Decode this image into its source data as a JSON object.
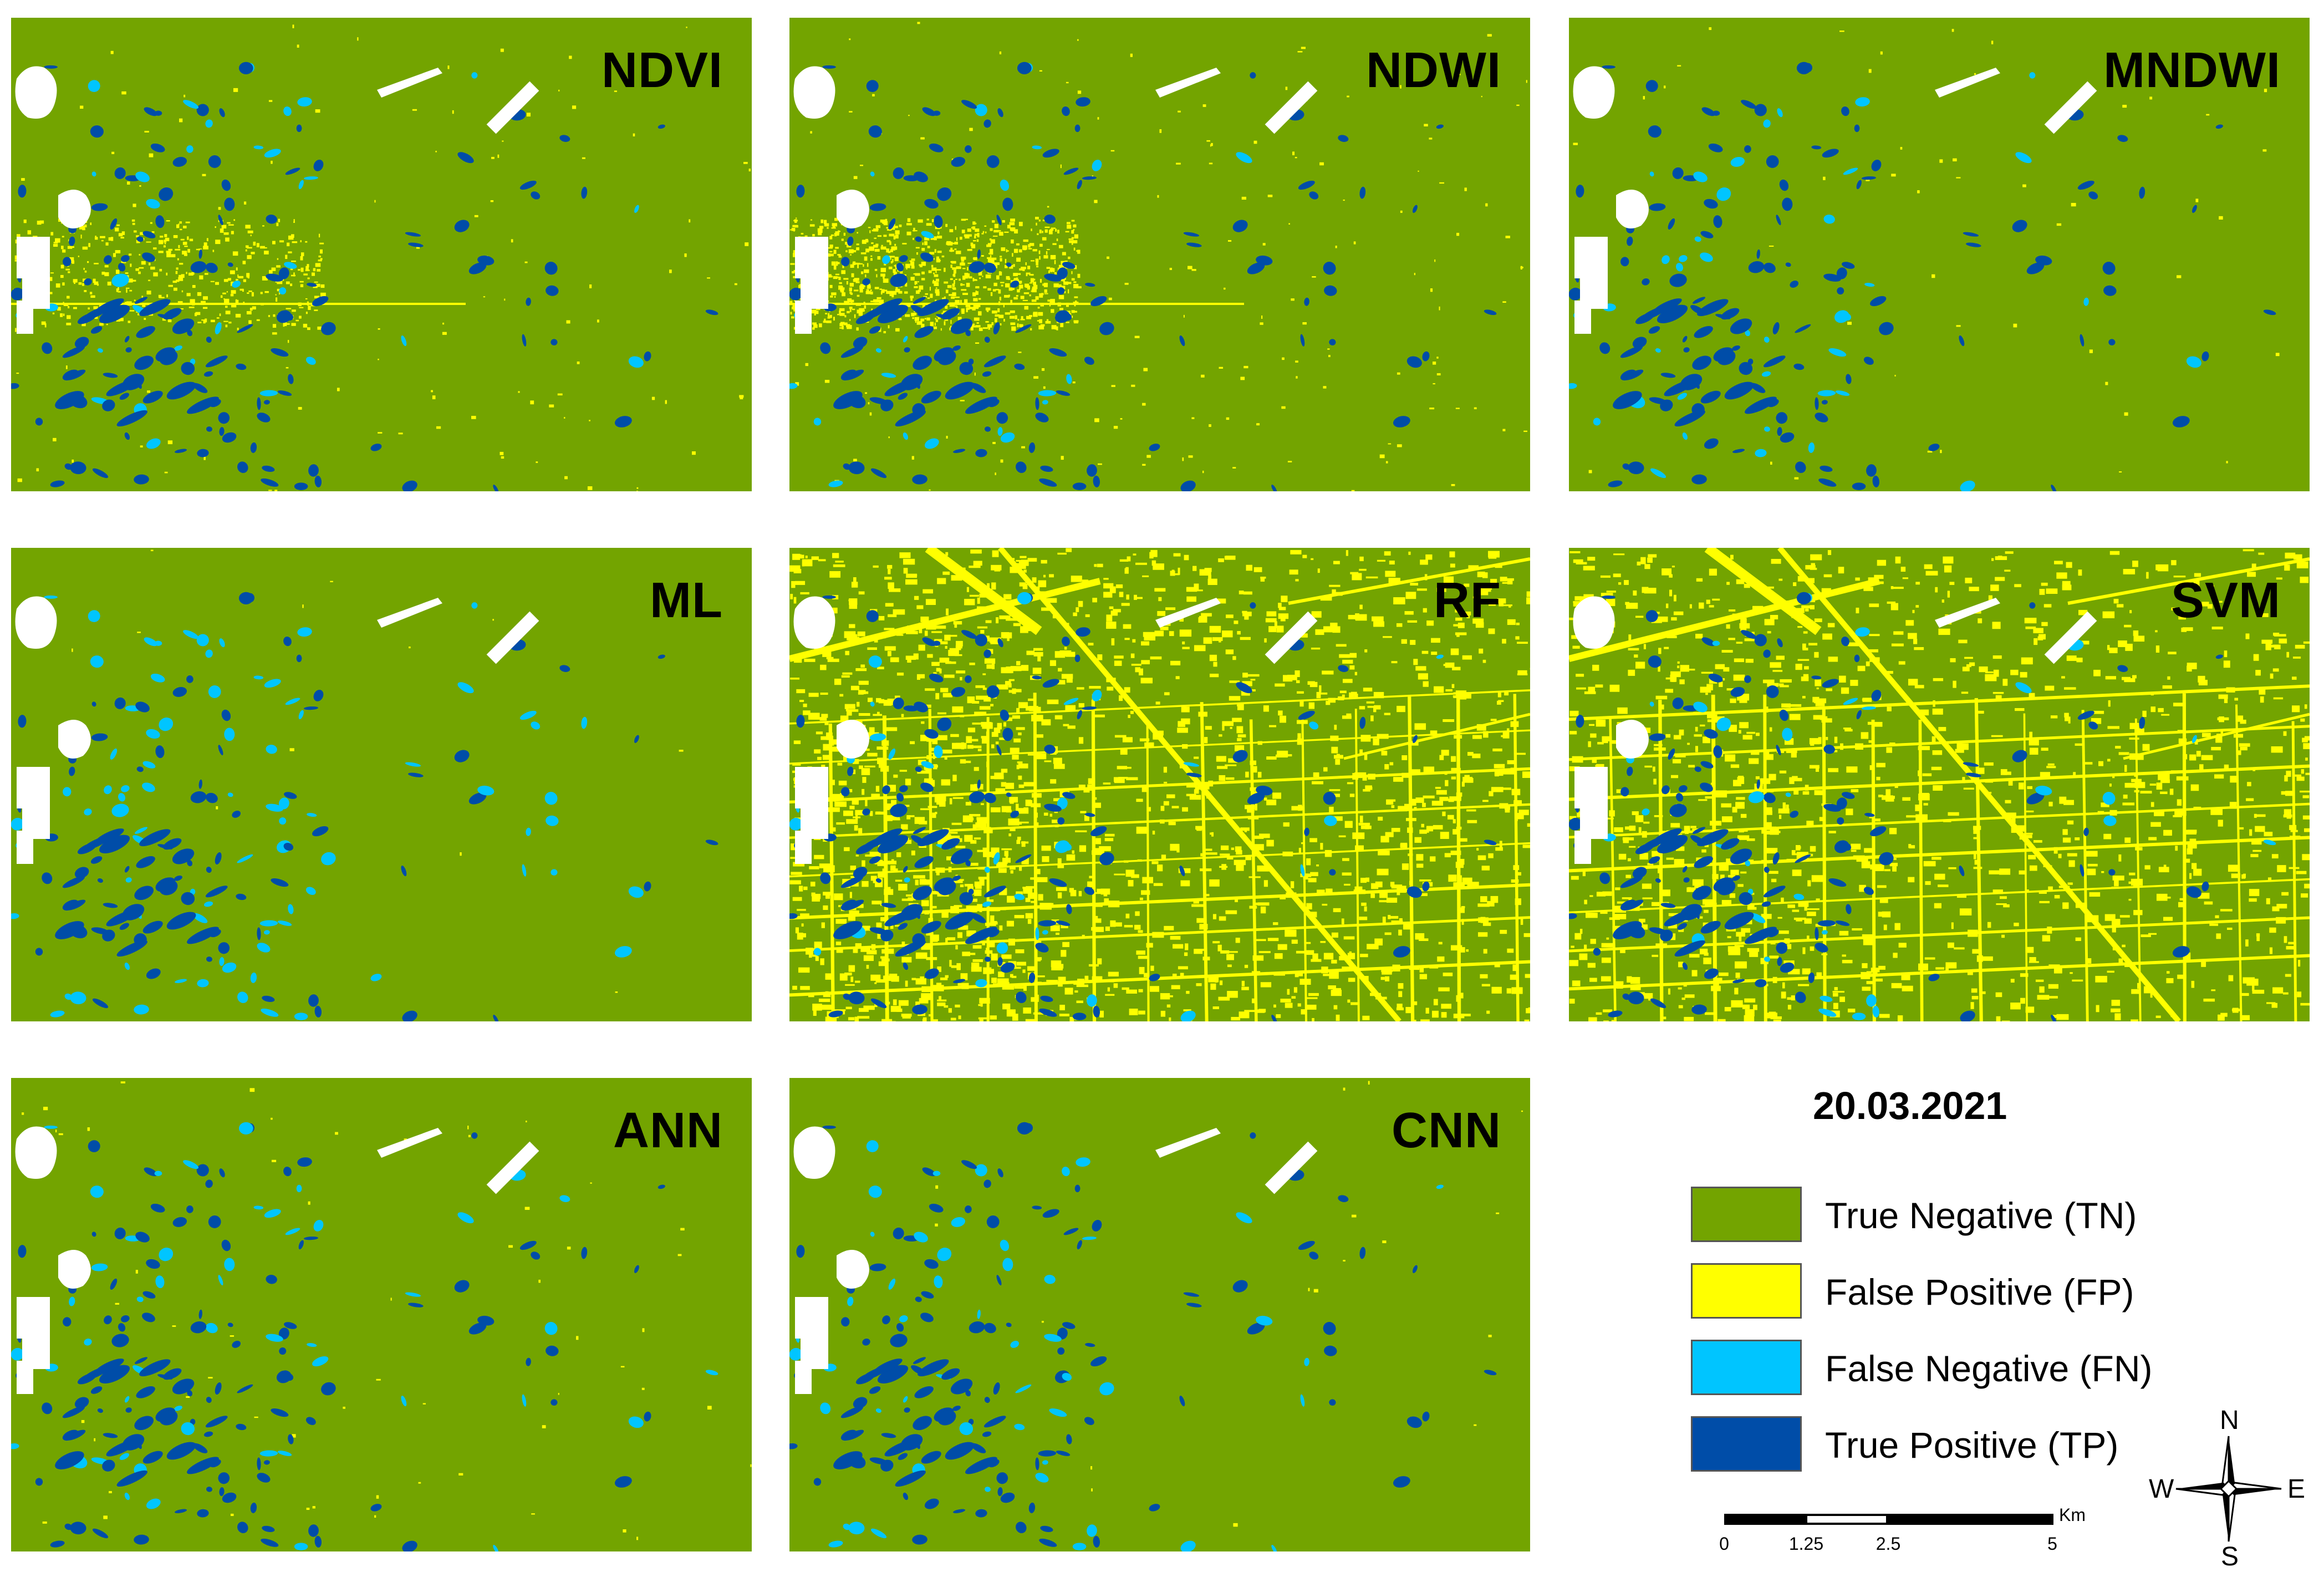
{
  "panels": [
    {
      "label": "NDVI"
    },
    {
      "label": "NDWI"
    },
    {
      "label": "MNDWI"
    },
    {
      "label": "ML"
    },
    {
      "label": "RF"
    },
    {
      "label": "SVM"
    },
    {
      "label": "ANN"
    },
    {
      "label": "CNN"
    }
  ],
  "legend": {
    "date": "20.03.2021",
    "items": [
      {
        "label": "True Negative (TN)",
        "color": "#73a400"
      },
      {
        "label": "False Positive (FP)",
        "color": "#ffff00"
      },
      {
        "label": "False Negative (FN)",
        "color": "#00c5ff"
      },
      {
        "label": "True Positive (TP)",
        "color": "#004da8"
      }
    ]
  },
  "scalebar": {
    "ticks": [
      "0",
      "1.25",
      "2.5",
      "5"
    ],
    "unit": "Km"
  },
  "compass": {
    "n": "N",
    "s": "S",
    "e": "E",
    "w": "W"
  },
  "colors": {
    "tn": "#73a400",
    "fp": "#ffff00",
    "fn": "#00c5ff",
    "tp": "#004da8",
    "nodata": "#ffffff"
  }
}
